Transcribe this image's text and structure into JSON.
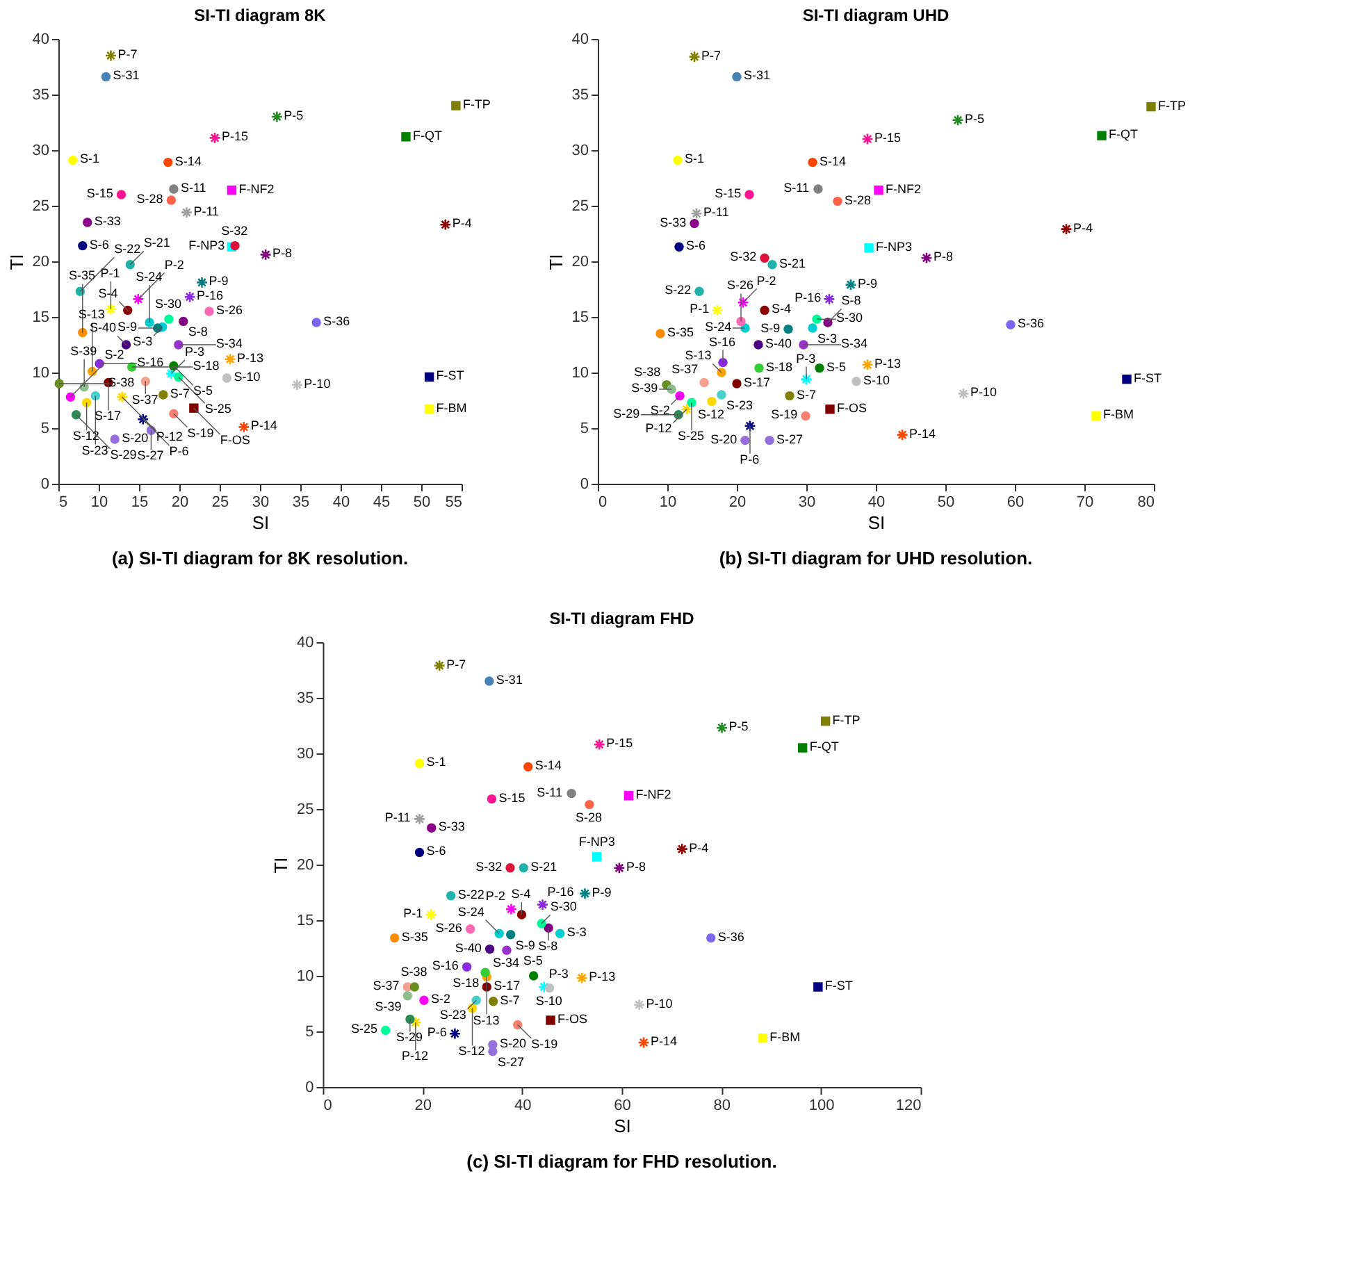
{
  "chart_data": [
    {
      "type": "scatter",
      "title": "SI-TI diagram 8K",
      "xlabel": "SI",
      "ylabel": "TI",
      "xlim": [
        5,
        55
      ],
      "ylim": [
        0,
        40
      ],
      "xticks": [
        5,
        10,
        15,
        20,
        25,
        30,
        35,
        40,
        45,
        50,
        55
      ],
      "yticks": [
        0,
        5,
        10,
        15,
        20,
        25,
        30,
        35,
        40
      ],
      "series": [
        {
          "marker": "circle",
          "x": [
            6.8,
            6.5,
            17.9,
            13.6,
            19.3,
            8.0,
            18.0,
            20.5,
            17.3,
            25.9,
            19.3,
            8.5,
            9.2,
            18.6,
            12.8,
            10.1,
            11.2,
            14.1,
            19.3,
            12.0,
            13.9,
            7.7,
            9.6,
            16.3,
            19.9,
            23.7,
            16.5,
            19.0,
            7.2,
            18.7,
            10.9,
            26.9,
            8.6,
            19.9,
            8.0,
            37.0,
            15.8,
            5.1,
            8.2,
            13.4
          ],
          "values": [
            29.1,
            7.8,
            14.1,
            15.6,
            10.6,
            21.4,
            8.0,
            14.6,
            14.0,
            9.5,
            26.5,
            7.3,
            10.1,
            28.9,
            26.0,
            10.8,
            9.1,
            10.5,
            6.3,
            4.0,
            19.7,
            17.3,
            7.9,
            14.5,
            9.6,
            15.5,
            4.8,
            25.5,
            6.2,
            14.8,
            36.6,
            21.4,
            23.5,
            12.5,
            13.6,
            14.5,
            9.2,
            9.0,
            8.7,
            12.5
          ],
          "colors": [
            "#ffff00",
            "#ff00ff",
            "#00ced1",
            "#8b0000",
            "#008000",
            "#000080",
            "#808000",
            "#800080",
            "#008080",
            "#c0c0c0",
            "#808080",
            "#ffd700",
            "#ffa500",
            "#ff4500",
            "#ff1493",
            "#8a2be2",
            "#800000",
            "#32cd32",
            "#fa8072",
            "#9370db",
            "#20b2aa",
            "#20b2aa",
            "#48d1cc",
            "#00ced1",
            "#00fa9a",
            "#ff69b4",
            "#9370db",
            "#ff6347",
            "#2e8b57",
            "#00fa9a",
            "#4682b4",
            "#dc143c",
            "#8b008b",
            "#9932cc",
            "#ff8c00",
            "#7b68ee",
            "#f4a090",
            "#6b8e23",
            "#8fbc8f",
            "#4b0082"
          ]
        },
        {
          "marker": "cross",
          "x": [
            11.5,
            14.9,
            19.0,
            53.0,
            32.1,
            15.5,
            11.5,
            30.7,
            22.8,
            34.6,
            20.9,
            12.9,
            26.3,
            28.0,
            24.4,
            21.3
          ],
          "values": [
            15.7,
            16.6,
            9.9,
            23.3,
            33.0,
            5.8,
            38.5,
            20.6,
            18.1,
            8.9,
            24.4,
            7.8,
            11.2,
            5.1,
            31.1,
            16.8
          ],
          "colors": [
            "#ffff00",
            "#ff00ff",
            "#00ffff",
            "#8b0000",
            "#228b22",
            "#000080",
            "#808000",
            "#800080",
            "#008080",
            "#c0c0c0",
            "#a0a0a0",
            "#ffd700",
            "#ffa500",
            "#ff4500",
            "#ff1493",
            "#8a2be2"
          ]
        },
        {
          "marker": "square",
          "x": [
            54.3,
            48.1,
            26.5,
            26.5,
            51.0,
            51.0,
            21.8
          ],
          "values": [
            34.0,
            31.2,
            26.4,
            21.3,
            9.6,
            6.7,
            6.8
          ],
          "colors": [
            "#808000",
            "#008000",
            "#ff00ff",
            "#00ffff",
            "#000080",
            "#ffff00",
            "#800000"
          ]
        }
      ],
      "annotations": [
        {
          "text": "S-1",
          "x": 6.8,
          "y": 29.1
        },
        {
          "text": "S-2",
          "x": 6.5,
          "y": 7.8
        },
        {
          "text": "S-3",
          "x": 17.9,
          "y": 14.1
        },
        {
          "text": "S-4",
          "x": 13.6,
          "y": 15.6
        },
        {
          "text": "S-5",
          "x": 19.3,
          "y": 10.6
        },
        {
          "text": "S-6",
          "x": 8.0,
          "y": 21.4
        },
        {
          "text": "S-7",
          "x": 18.0,
          "y": 8.0
        },
        {
          "text": "S-8",
          "x": 20.5,
          "y": 14.6
        },
        {
          "text": "S-9",
          "x": 17.3,
          "y": 14.0
        },
        {
          "text": "S-10",
          "x": 25.9,
          "y": 9.5
        },
        {
          "text": "S-11",
          "x": 19.3,
          "y": 26.5
        },
        {
          "text": "S-12",
          "x": 8.5,
          "y": 7.3
        },
        {
          "text": "S-13",
          "x": 9.2,
          "y": 10.1
        },
        {
          "text": "S-14",
          "x": 18.6,
          "y": 28.9
        },
        {
          "text": "S-15",
          "x": 12.8,
          "y": 26.0
        },
        {
          "text": "S-16",
          "x": 10.1,
          "y": 10.8
        },
        {
          "text": "S-17",
          "x": 11.2,
          "y": 9.1
        },
        {
          "text": "S-18",
          "x": 14.1,
          "y": 10.5
        },
        {
          "text": "S-19",
          "x": 19.3,
          "y": 6.3
        },
        {
          "text": "S-20",
          "x": 12.0,
          "y": 4.0
        },
        {
          "text": "S-21",
          "x": 13.9,
          "y": 19.7
        },
        {
          "text": "S-22",
          "x": 7.7,
          "y": 17.3
        },
        {
          "text": "S-23",
          "x": 9.6,
          "y": 7.9
        },
        {
          "text": "S-24",
          "x": 16.3,
          "y": 14.5
        },
        {
          "text": "S-25",
          "x": 19.9,
          "y": 9.6
        },
        {
          "text": "S-26",
          "x": 23.7,
          "y": 15.5
        },
        {
          "text": "S-27",
          "x": 16.5,
          "y": 4.8
        },
        {
          "text": "S-28",
          "x": 19.0,
          "y": 25.5
        },
        {
          "text": "S-29",
          "x": 7.2,
          "y": 6.2
        },
        {
          "text": "S-30",
          "x": 18.7,
          "y": 14.8
        },
        {
          "text": "S-31",
          "x": 10.9,
          "y": 36.6
        },
        {
          "text": "S-32",
          "x": 26.9,
          "y": 21.4
        },
        {
          "text": "S-33",
          "x": 8.6,
          "y": 23.5
        },
        {
          "text": "S-34",
          "x": 19.9,
          "y": 12.5
        },
        {
          "text": "S-35",
          "x": 8.0,
          "y": 13.6
        },
        {
          "text": "S-36",
          "x": 37.0,
          "y": 14.5
        },
        {
          "text": "S-37",
          "x": 15.8,
          "y": 9.2
        },
        {
          "text": "S-38",
          "x": 5.1,
          "y": 9.0
        },
        {
          "text": "S-39",
          "x": 8.2,
          "y": 8.7
        },
        {
          "text": "S-40",
          "x": 13.4,
          "y": 12.5
        },
        {
          "text": "P-1",
          "x": 11.5,
          "y": 15.7
        },
        {
          "text": "P-2",
          "x": 14.9,
          "y": 16.6
        },
        {
          "text": "P-3",
          "x": 19.0,
          "y": 9.9
        },
        {
          "text": "P-4",
          "x": 53.0,
          "y": 23.3
        },
        {
          "text": "P-5",
          "x": 32.1,
          "y": 33.0
        },
        {
          "text": "P-6",
          "x": 15.5,
          "y": 5.8
        },
        {
          "text": "P-7",
          "x": 11.5,
          "y": 38.5
        },
        {
          "text": "P-8",
          "x": 30.7,
          "y": 20.6
        },
        {
          "text": "P-9",
          "x": 22.8,
          "y": 18.1
        },
        {
          "text": "P-10",
          "x": 34.6,
          "y": 8.9
        },
        {
          "text": "P-11",
          "x": 20.9,
          "y": 24.4
        },
        {
          "text": "P-12",
          "x": 12.9,
          "y": 7.8
        },
        {
          "text": "P-13",
          "x": 26.3,
          "y": 11.2
        },
        {
          "text": "P-14",
          "x": 28.0,
          "y": 5.1
        },
        {
          "text": "P-15",
          "x": 24.4,
          "y": 31.1
        },
        {
          "text": "P-16",
          "x": 21.3,
          "y": 16.8
        },
        {
          "text": "F-TP",
          "x": 54.3,
          "y": 34.0
        },
        {
          "text": "F-QT",
          "x": 48.1,
          "y": 31.2
        },
        {
          "text": "F-NF2",
          "x": 26.5,
          "y": 26.4
        },
        {
          "text": "F-NP3",
          "x": 26.5,
          "y": 21.3
        },
        {
          "text": "F-ST",
          "x": 51.0,
          "y": 9.6
        },
        {
          "text": "F-BM",
          "x": 51.0,
          "y": 6.7
        },
        {
          "text": "F-OS",
          "x": 21.8,
          "y": 6.8
        },
        "(a) SI-TI diagram for 8K resolution."
      ]
    },
    {
      "type": "scatter",
      "title": "SI-TI diagram UHD",
      "xlabel": "SI",
      "ylabel": "TI",
      "xlim": [
        0,
        80
      ],
      "ylim": [
        0,
        40
      ],
      "xticks": [
        0,
        10,
        20,
        30,
        40,
        50,
        60,
        70,
        80
      ],
      "yticks": [
        0,
        5,
        10,
        15,
        20,
        25,
        30,
        35,
        40
      ],
      "series": [
        {
          "marker": "circle",
          "x": [
            11.5,
            11.8,
            30.9,
            24.0,
            31.9,
            11.7,
            27.6,
            33.1,
            27.4,
            37.2,
            31.7,
            16.4,
            17.8,
            30.9,
            21.8,
            18.0,
            20.0,
            23.2,
            29.9,
            21.2,
            25.1,
            14.6,
            17.8,
            21.2,
            13.5,
            20.6,
            24.7,
            34.5,
            11.6,
            31.5,
            20.0,
            24.0,
            13.9,
            29.6,
            9.0,
            59.4,
            15.3,
            9.9,
            10.6,
            23.1
          ],
          "values": [
            29.1,
            7.9,
            14.0,
            15.6,
            10.4,
            21.3,
            7.9,
            14.5,
            13.9,
            9.2,
            26.5,
            7.4,
            10.0,
            28.9,
            26.0,
            10.9,
            9.0,
            10.4,
            6.1,
            3.9,
            19.7,
            17.3,
            8.0,
            14.0,
            7.3,
            14.6,
            3.9,
            25.4,
            6.2,
            14.8,
            36.6,
            20.3,
            23.4,
            12.5,
            13.5,
            14.3,
            9.1,
            8.9,
            8.5,
            12.5
          ],
          "colors": [
            "#ffff00",
            "#ff00ff",
            "#00ced1",
            "#8b0000",
            "#008000",
            "#000080",
            "#808000",
            "#800080",
            "#008080",
            "#c0c0c0",
            "#808080",
            "#ffd700",
            "#ffa500",
            "#ff4500",
            "#ff1493",
            "#8a2be2",
            "#800000",
            "#32cd32",
            "#fa8072",
            "#9370db",
            "#20b2aa",
            "#20b2aa",
            "#48d1cc",
            "#00ced1",
            "#00fa9a",
            "#ff69b4",
            "#9370db",
            "#ff6347",
            "#2e8b57",
            "#00fa9a",
            "#4682b4",
            "#dc143c",
            "#8b008b",
            "#9932cc",
            "#ff8c00",
            "#7b68ee",
            "#f4a090",
            "#6b8e23",
            "#8fbc8f",
            "#4b0082"
          ]
        },
        {
          "marker": "cross",
          "x": [
            17.2,
            20.9,
            30.0,
            67.4,
            51.8,
            21.9,
            13.9,
            47.3,
            36.4,
            52.6,
            14.2,
            12.8,
            38.8,
            43.8,
            38.8,
            33.3
          ],
          "values": [
            15.6,
            16.3,
            9.4,
            22.9,
            32.7,
            5.2,
            38.4,
            20.3,
            17.9,
            8.1,
            24.3,
            6.7,
            10.7,
            4.4,
            31.0,
            16.6
          ],
          "colors": [
            "#ffff00",
            "#ff00ff",
            "#00ffff",
            "#8b0000",
            "#228b22",
            "#000080",
            "#808000",
            "#800080",
            "#008080",
            "#c0c0c0",
            "#a0a0a0",
            "#ffd700",
            "#ffa500",
            "#ff4500",
            "#ff1493",
            "#8a2be2"
          ]
        },
        {
          "marker": "square",
          "x": [
            79.6,
            72.5,
            40.4,
            39.0,
            76.1,
            71.7,
            33.4
          ],
          "values": [
            33.9,
            31.3,
            26.4,
            21.2,
            9.4,
            6.1,
            6.7
          ],
          "colors": [
            "#808000",
            "#008000",
            "#ff00ff",
            "#00ffff",
            "#000080",
            "#ffff00",
            "#800000"
          ]
        }
      ],
      "annotations": [
        {
          "text": "S-1",
          "x": 11.5,
          "y": 29.1
        },
        {
          "text": "S-2",
          "x": 11.8,
          "y": 7.9
        },
        {
          "text": "S-3",
          "x": 30.9,
          "y": 14.0
        },
        {
          "text": "S-4",
          "x": 24.0,
          "y": 15.6
        },
        {
          "text": "S-5",
          "x": 31.9,
          "y": 10.4
        },
        {
          "text": "S-6",
          "x": 11.7,
          "y": 21.3
        },
        {
          "text": "S-7",
          "x": 27.6,
          "y": 7.9
        },
        {
          "text": "S-8",
          "x": 33.1,
          "y": 14.5
        },
        {
          "text": "S-9",
          "x": 27.4,
          "y": 13.9
        },
        {
          "text": "S-10",
          "x": 37.2,
          "y": 9.2
        },
        {
          "text": "S-11",
          "x": 31.7,
          "y": 26.5
        },
        {
          "text": "S-12",
          "x": 16.4,
          "y": 7.4
        },
        {
          "text": "S-13",
          "x": 17.8,
          "y": 10.0
        },
        {
          "text": "S-14",
          "x": 30.9,
          "y": 28.9
        },
        {
          "text": "S-15",
          "x": 21.8,
          "y": 26.0
        },
        {
          "text": "S-16",
          "x": 18.0,
          "y": 10.9
        },
        {
          "text": "S-17",
          "x": 20.0,
          "y": 9.0
        },
        {
          "text": "S-18",
          "x": 23.2,
          "y": 10.4
        },
        {
          "text": "S-19",
          "x": 29.9,
          "y": 6.1
        },
        {
          "text": "S-20",
          "x": 21.2,
          "y": 3.9
        },
        {
          "text": "S-21",
          "x": 25.1,
          "y": 19.7
        },
        {
          "text": "S-22",
          "x": 14.6,
          "y": 17.3
        },
        {
          "text": "S-23",
          "x": 17.8,
          "y": 8.0
        },
        {
          "text": "S-24",
          "x": 21.2,
          "y": 14.0
        },
        {
          "text": "S-25",
          "x": 13.5,
          "y": 7.3
        },
        {
          "text": "S-26",
          "x": 20.6,
          "y": 14.6
        },
        {
          "text": "S-27",
          "x": 24.7,
          "y": 3.9
        },
        {
          "text": "S-28",
          "x": 34.5,
          "y": 25.4
        },
        {
          "text": "S-29",
          "x": 11.6,
          "y": 6.2
        },
        {
          "text": "S-30",
          "x": 31.5,
          "y": 14.8
        },
        {
          "text": "S-31",
          "x": 20.0,
          "y": 36.6
        },
        {
          "text": "S-32",
          "x": 24.0,
          "y": 20.3
        },
        {
          "text": "S-33",
          "x": 13.9,
          "y": 23.4
        },
        {
          "text": "S-34",
          "x": 29.6,
          "y": 12.5
        },
        {
          "text": "S-35",
          "x": 9.0,
          "y": 13.5
        },
        {
          "text": "S-36",
          "x": 59.4,
          "y": 14.3
        },
        {
          "text": "S-37",
          "x": 15.3,
          "y": 9.1
        },
        {
          "text": "S-38",
          "x": 9.9,
          "y": 8.9
        },
        {
          "text": "S-39",
          "x": 10.6,
          "y": 8.5
        },
        {
          "text": "S-40",
          "x": 23.1,
          "y": 12.5
        },
        {
          "text": "P-1",
          "x": 17.2,
          "y": 15.6
        },
        {
          "text": "P-2",
          "x": 20.9,
          "y": 16.3
        },
        {
          "text": "P-3",
          "x": 30.0,
          "y": 9.4
        },
        {
          "text": "P-4",
          "x": 67.4,
          "y": 22.9
        },
        {
          "text": "P-5",
          "x": 51.8,
          "y": 32.7
        },
        {
          "text": "P-6",
          "x": 21.9,
          "y": 5.2
        },
        {
          "text": "P-7",
          "x": 13.9,
          "y": 38.4
        },
        {
          "text": "P-8",
          "x": 47.3,
          "y": 20.3
        },
        {
          "text": "P-9",
          "x": 36.4,
          "y": 17.9
        },
        {
          "text": "P-10",
          "x": 52.6,
          "y": 8.1
        },
        {
          "text": "P-11",
          "x": 14.2,
          "y": 24.3
        },
        {
          "text": "P-12",
          "x": 12.8,
          "y": 6.7
        },
        {
          "text": "P-13",
          "x": 38.8,
          "y": 10.7
        },
        {
          "text": "P-14",
          "x": 43.8,
          "y": 4.4
        },
        {
          "text": "P-15",
          "x": 38.8,
          "y": 31.0
        },
        {
          "text": "P-16",
          "x": 33.3,
          "y": 16.6
        },
        {
          "text": "F-TP",
          "x": 79.6,
          "y": 33.9
        },
        {
          "text": "F-QT",
          "x": 72.5,
          "y": 31.3
        },
        {
          "text": "F-NF2",
          "x": 40.4,
          "y": 26.4
        },
        {
          "text": "F-NP3",
          "x": 39.0,
          "y": 21.2
        },
        {
          "text": "F-ST",
          "x": 76.1,
          "y": 9.4
        },
        {
          "text": "F-BM",
          "x": 71.7,
          "y": 6.1
        },
        {
          "text": "F-OS",
          "x": 33.4,
          "y": 6.7
        },
        "(b) SI-TI diagram for UHD resolution."
      ]
    },
    {
      "type": "scatter",
      "title": "SI-TI diagram FHD",
      "xlabel": "SI",
      "ylabel": "TI",
      "xlim": [
        0,
        120
      ],
      "ylim": [
        0,
        40
      ],
      "xticks": [
        0,
        20,
        40,
        60,
        80,
        100,
        120
      ],
      "yticks": [
        0,
        5,
        10,
        15,
        20,
        25,
        30,
        35,
        40
      ],
      "series": [
        {
          "marker": "circle",
          "x": [
            19.4,
            20.3,
            47.6,
            39.9,
            42.3,
            19.4,
            34.2,
            45.3,
            37.7,
            45.5,
            49.9,
            30.0,
            32.9,
            41.2,
            33.9,
            28.9,
            32.9,
            32.6,
            39.1,
            34.1,
            40.3,
            25.7,
            30.8,
            35.4,
            12.6,
            29.6,
            34.1,
            53.5,
            17.5,
            43.9,
            33.4,
            37.6,
            21.8,
            36.9,
            14.4,
            77.9,
            17.0,
            18.4,
            17.0,
            33.5
          ],
          "values": [
            29.1,
            7.8,
            13.8,
            15.5,
            10.0,
            21.1,
            7.7,
            14.3,
            13.7,
            8.9,
            26.4,
            7.1,
            9.9,
            28.8,
            25.9,
            10.8,
            9.0,
            10.3,
            5.6,
            3.8,
            19.7,
            17.2,
            7.8,
            13.8,
            5.1,
            14.2,
            3.2,
            25.4,
            6.1,
            14.7,
            36.5,
            19.7,
            23.3,
            12.3,
            13.4,
            13.4,
            9.0,
            9.0,
            8.2,
            12.4
          ],
          "colors": [
            "#ffff00",
            "#ff00ff",
            "#00ced1",
            "#8b0000",
            "#008000",
            "#000080",
            "#808000",
            "#800080",
            "#008080",
            "#c0c0c0",
            "#808080",
            "#ffd700",
            "#ffa500",
            "#ff4500",
            "#ff1493",
            "#8a2be2",
            "#800000",
            "#32cd32",
            "#fa8072",
            "#9370db",
            "#20b2aa",
            "#20b2aa",
            "#48d1cc",
            "#00ced1",
            "#00fa9a",
            "#ff69b4",
            "#9370db",
            "#ff6347",
            "#2e8b57",
            "#00fa9a",
            "#4682b4",
            "#dc143c",
            "#8b008b",
            "#9932cc",
            "#ff8c00",
            "#7b68ee",
            "#f4a090",
            "#6b8e23",
            "#8fbc8f",
            "#4b0082"
          ]
        },
        {
          "marker": "cross",
          "x": [
            21.7,
            37.8,
            44.4,
            72.1,
            80.1,
            26.5,
            23.4,
            59.5,
            52.6,
            63.5,
            19.4,
            18.6,
            52.0,
            64.4,
            55.5,
            44.1
          ],
          "values": [
            15.5,
            16.0,
            9.0,
            21.4,
            32.3,
            4.8,
            37.9,
            19.7,
            17.4,
            7.4,
            24.1,
            5.8,
            9.8,
            4.0,
            30.8,
            16.4
          ],
          "colors": [
            "#ffff00",
            "#ff00ff",
            "#00ffff",
            "#8b0000",
            "#228b22",
            "#000080",
            "#808000",
            "#800080",
            "#008080",
            "#c0c0c0",
            "#a0a0a0",
            "#ffd700",
            "#ffa500",
            "#ff4500",
            "#ff1493",
            "#8a2be2"
          ]
        },
        {
          "marker": "square",
          "x": [
            100.9,
            96.3,
            61.4,
            55.0,
            99.4,
            88.3,
            45.7
          ],
          "values": [
            32.9,
            30.5,
            26.2,
            20.7,
            9.0,
            4.4,
            6.0
          ],
          "colors": [
            "#808000",
            "#008000",
            "#ff00ff",
            "#00ffff",
            "#000080",
            "#ffff00",
            "#800000"
          ]
        }
      ],
      "annotations": [
        {
          "text": "S-1",
          "x": 19.4,
          "y": 29.1
        },
        {
          "text": "S-2",
          "x": 20.3,
          "y": 7.8
        },
        {
          "text": "S-3",
          "x": 47.6,
          "y": 13.8
        },
        {
          "text": "S-4",
          "x": 39.9,
          "y": 15.5
        },
        {
          "text": "S-5",
          "x": 42.3,
          "y": 10.0
        },
        {
          "text": "S-6",
          "x": 19.4,
          "y": 21.1
        },
        {
          "text": "S-7",
          "x": 34.2,
          "y": 7.7
        },
        {
          "text": "S-8",
          "x": 45.3,
          "y": 14.3
        },
        {
          "text": "S-9",
          "x": 37.7,
          "y": 13.7
        },
        {
          "text": "S-10",
          "x": 45.5,
          "y": 8.9
        },
        {
          "text": "S-11",
          "x": 49.9,
          "y": 26.4
        },
        {
          "text": "S-12",
          "x": 30.0,
          "y": 7.1
        },
        {
          "text": "S-13",
          "x": 32.9,
          "y": 9.9
        },
        {
          "text": "S-14",
          "x": 41.2,
          "y": 28.8
        },
        {
          "text": "S-15",
          "x": 33.9,
          "y": 25.9
        },
        {
          "text": "S-16",
          "x": 28.9,
          "y": 10.8
        },
        {
          "text": "S-17",
          "x": 32.9,
          "y": 9.0
        },
        {
          "text": "S-18",
          "x": 32.6,
          "y": 10.3
        },
        {
          "text": "S-19",
          "x": 39.1,
          "y": 5.6
        },
        {
          "text": "S-20",
          "x": 34.1,
          "y": 3.8
        },
        {
          "text": "S-21",
          "x": 40.3,
          "y": 19.7
        },
        {
          "text": "S-22",
          "x": 25.7,
          "y": 17.2
        },
        {
          "text": "S-23",
          "x": 30.8,
          "y": 7.8
        },
        {
          "text": "S-24",
          "x": 35.4,
          "y": 13.8
        },
        {
          "text": "S-25",
          "x": 12.6,
          "y": 5.1
        },
        {
          "text": "S-26",
          "x": 29.6,
          "y": 14.2
        },
        {
          "text": "S-27",
          "x": 34.1,
          "y": 3.2
        },
        {
          "text": "S-28",
          "x": 53.5,
          "y": 25.4
        },
        {
          "text": "S-29",
          "x": 17.5,
          "y": 6.1
        },
        {
          "text": "S-30",
          "x": 43.9,
          "y": 14.7
        },
        {
          "text": "S-31",
          "x": 33.4,
          "y": 36.5
        },
        {
          "text": "S-32",
          "x": 37.6,
          "y": 19.7
        },
        {
          "text": "S-33",
          "x": 21.8,
          "y": 23.3
        },
        {
          "text": "S-34",
          "x": 36.9,
          "y": 12.3
        },
        {
          "text": "S-35",
          "x": 14.4,
          "y": 13.4
        },
        {
          "text": "S-36",
          "x": 77.9,
          "y": 13.4
        },
        {
          "text": "S-37",
          "x": 17.0,
          "y": 9.0
        },
        {
          "text": "S-38",
          "x": 18.4,
          "y": 9.0
        },
        {
          "text": "S-39",
          "x": 17.0,
          "y": 8.2
        },
        {
          "text": "S-40",
          "x": 33.5,
          "y": 12.4
        },
        {
          "text": "P-1",
          "x": 21.7,
          "y": 15.5
        },
        {
          "text": "P-2",
          "x": 37.8,
          "y": 16.0
        },
        {
          "text": "P-3",
          "x": 44.4,
          "y": 9.0
        },
        {
          "text": "P-4",
          "x": 72.1,
          "y": 21.4
        },
        {
          "text": "P-5",
          "x": 80.1,
          "y": 32.3
        },
        {
          "text": "P-6",
          "x": 26.5,
          "y": 4.8
        },
        {
          "text": "P-7",
          "x": 23.4,
          "y": 37.9
        },
        {
          "text": "P-8",
          "x": 59.5,
          "y": 19.7
        },
        {
          "text": "P-9",
          "x": 52.6,
          "y": 17.4
        },
        {
          "text": "P-10",
          "x": 63.5,
          "y": 7.4
        },
        {
          "text": "P-11",
          "x": 19.4,
          "y": 24.1
        },
        {
          "text": "P-12",
          "x": 18.6,
          "y": 5.8
        },
        {
          "text": "P-13",
          "x": 52.0,
          "y": 9.8
        },
        {
          "text": "P-14",
          "x": 64.4,
          "y": 4.0
        },
        {
          "text": "P-15",
          "x": 55.5,
          "y": 30.8
        },
        {
          "text": "P-16",
          "x": 44.1,
          "y": 16.4
        },
        {
          "text": "F-TP",
          "x": 100.9,
          "y": 32.9
        },
        {
          "text": "F-QT",
          "x": 96.3,
          "y": 30.5
        },
        {
          "text": "F-NF2",
          "x": 61.4,
          "y": 26.2
        },
        {
          "text": "F-NP3",
          "x": 55.0,
          "y": 20.7
        },
        {
          "text": "F-ST",
          "x": 99.4,
          "y": 9.0
        },
        {
          "text": "F-BM",
          "x": 88.3,
          "y": 4.4
        },
        {
          "text": "F-OS",
          "x": 45.7,
          "y": 6.0
        },
        "(c) SI-TI diagram for FHD resolution."
      ]
    }
  ]
}
